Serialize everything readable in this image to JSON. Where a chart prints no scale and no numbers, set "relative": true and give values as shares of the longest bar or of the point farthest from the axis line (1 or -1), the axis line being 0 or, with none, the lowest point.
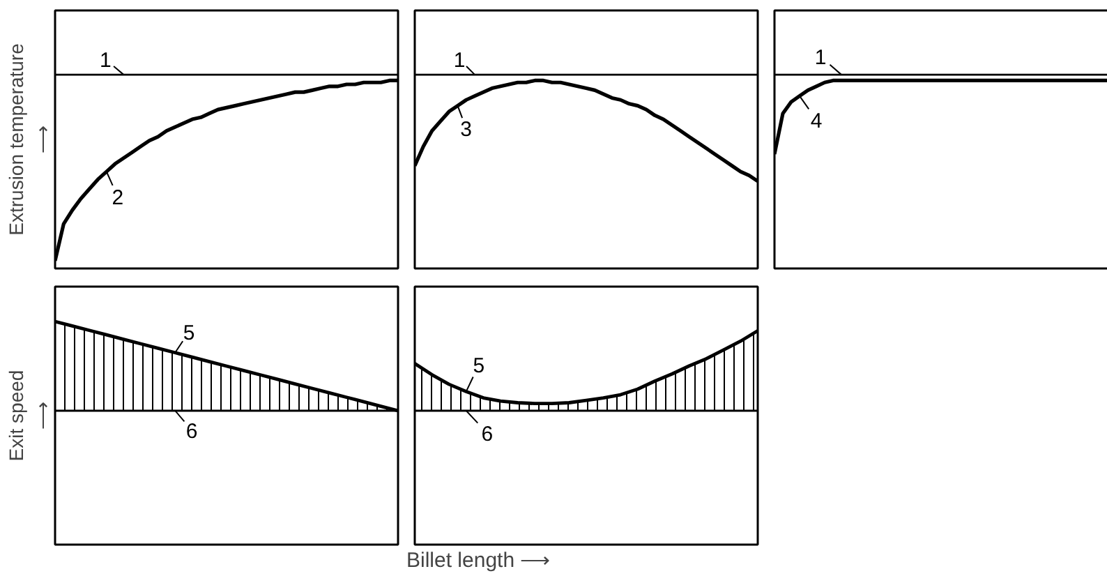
{
  "chart_data": [
    {
      "type": "line",
      "relative": true,
      "ylabel": "Extrusion temperature\n⟶",
      "categories": [
        null,
        null,
        null,
        null,
        null,
        null,
        null,
        null,
        null,
        null,
        null,
        null,
        null,
        null,
        null,
        null,
        null,
        null,
        null,
        null,
        null,
        null,
        null,
        null,
        null,
        null,
        null,
        null,
        null,
        null,
        null,
        null,
        null,
        null,
        null,
        null,
        null,
        null,
        null,
        null,
        null
      ],
      "series": [
        {
          "name": "1",
          "color": "#000000",
          "values": [
            1,
            1,
            1,
            1,
            1,
            1,
            1,
            1,
            1,
            1,
            1,
            1,
            1,
            1,
            1,
            1,
            1,
            1,
            1,
            1,
            1,
            1,
            1,
            1,
            1,
            1,
            1,
            1,
            1,
            1,
            1,
            1,
            1,
            1,
            1,
            1,
            1,
            1,
            1,
            1,
            1
          ]
        },
        {
          "name": "2",
          "color": "#000000",
          "values": [
            0.04,
            0.23,
            0.3,
            0.36,
            0.41,
            0.46,
            0.5,
            0.54,
            0.57,
            0.6,
            0.63,
            0.66,
            0.68,
            0.71,
            0.73,
            0.75,
            0.77,
            0.78,
            0.8,
            0.82,
            0.83,
            0.84,
            0.85,
            0.86,
            0.87,
            0.88,
            0.89,
            0.9,
            0.91,
            0.91,
            0.92,
            0.93,
            0.94,
            0.94,
            0.95,
            0.95,
            0.96,
            0.96,
            0.96,
            0.97,
            0.97
          ]
        }
      ]
    },
    {
      "type": "line",
      "relative": true,
      "categories": [
        null,
        null,
        null,
        null,
        null,
        null,
        null,
        null,
        null,
        null,
        null,
        null,
        null,
        null,
        null,
        null,
        null,
        null,
        null,
        null,
        null,
        null,
        null,
        null,
        null,
        null,
        null,
        null,
        null,
        null,
        null,
        null,
        null,
        null,
        null,
        null,
        null,
        null,
        null,
        null,
        null
      ],
      "series": [
        {
          "name": "1",
          "color": "#000000",
          "values": [
            1,
            1,
            1,
            1,
            1,
            1,
            1,
            1,
            1,
            1,
            1,
            1,
            1,
            1,
            1,
            1,
            1,
            1,
            1,
            1,
            1,
            1,
            1,
            1,
            1,
            1,
            1,
            1,
            1,
            1,
            1,
            1,
            1,
            1,
            1,
            1,
            1,
            1,
            1,
            1,
            1
          ]
        },
        {
          "name": "3",
          "color": "#000000",
          "values": [
            0.53,
            0.63,
            0.71,
            0.76,
            0.81,
            0.84,
            0.87,
            0.89,
            0.91,
            0.93,
            0.94,
            0.95,
            0.96,
            0.96,
            0.97,
            0.97,
            0.96,
            0.96,
            0.95,
            0.94,
            0.93,
            0.92,
            0.9,
            0.88,
            0.87,
            0.85,
            0.84,
            0.82,
            0.79,
            0.77,
            0.74,
            0.71,
            0.68,
            0.65,
            0.62,
            0.59,
            0.56,
            0.53,
            0.5,
            0.48,
            0.45
          ]
        }
      ]
    },
    {
      "type": "line",
      "relative": true,
      "categories": [
        null,
        null,
        null,
        null,
        null,
        null,
        null,
        null,
        null,
        null,
        null,
        null,
        null,
        null,
        null,
        null,
        null,
        null,
        null,
        null,
        null,
        null,
        null,
        null,
        null,
        null,
        null,
        null,
        null,
        null,
        null,
        null,
        null,
        null,
        null,
        null,
        null,
        null,
        null,
        null,
        null
      ],
      "series": [
        {
          "name": "1",
          "color": "#000000",
          "values": [
            1,
            1,
            1,
            1,
            1,
            1,
            1,
            1,
            1,
            1,
            1,
            1,
            1,
            1,
            1,
            1,
            1,
            1,
            1,
            1,
            1,
            1,
            1,
            1,
            1,
            1,
            1,
            1,
            1,
            1,
            1,
            1,
            1,
            1,
            1,
            1,
            1,
            1,
            1,
            1,
            1
          ]
        },
        {
          "name": "4",
          "color": "#000000",
          "values": [
            0.59,
            0.8,
            0.86,
            0.89,
            0.92,
            0.94,
            0.96,
            0.97,
            0.97,
            0.97,
            0.97,
            0.97,
            0.97,
            0.97,
            0.97,
            0.97,
            0.97,
            0.97,
            0.97,
            0.97,
            0.97,
            0.97,
            0.97,
            0.97,
            0.97,
            0.97,
            0.97,
            0.97,
            0.97,
            0.97,
            0.97,
            0.97,
            0.97,
            0.97,
            0.97,
            0.97,
            0.97,
            0.97,
            0.97,
            0.97,
            0.97
          ]
        }
      ]
    },
    {
      "type": "area",
      "relative": true,
      "ylabel": "Exit speed\n⟶",
      "categories": [
        null,
        null,
        null,
        null,
        null,
        null,
        null,
        null,
        null,
        null,
        null,
        null,
        null,
        null,
        null,
        null,
        null,
        null,
        null,
        null,
        null
      ],
      "series": [
        {
          "name": "5",
          "color": "#000000",
          "values": [
            1.0,
            0.95,
            0.9,
            0.85,
            0.8,
            0.75,
            0.7,
            0.65,
            0.6,
            0.55,
            0.5,
            0.45,
            0.4,
            0.35,
            0.3,
            0.25,
            0.2,
            0.15,
            0.1,
            0.05,
            0.0
          ]
        },
        {
          "name": "6",
          "type": "line",
          "color": "#000000",
          "values": [
            0,
            0,
            0,
            0,
            0,
            0,
            0,
            0,
            0,
            0,
            0,
            0,
            0,
            0,
            0,
            0,
            0,
            0,
            0,
            0,
            0
          ]
        }
      ]
    },
    {
      "type": "area",
      "relative": true,
      "xlabel": "Billet length  ⟶",
      "categories": [
        null,
        null,
        null,
        null,
        null,
        null,
        null,
        null,
        null,
        null,
        null,
        null,
        null,
        null,
        null,
        null,
        null,
        null,
        null,
        null,
        null
      ],
      "series": [
        {
          "name": "5",
          "color": "#000000",
          "values": [
            0.59,
            0.45,
            0.33,
            0.24,
            0.16,
            0.12,
            0.1,
            0.09,
            0.09,
            0.1,
            0.13,
            0.16,
            0.2,
            0.27,
            0.37,
            0.46,
            0.56,
            0.65,
            0.76,
            0.87,
            1.0
          ]
        },
        {
          "name": "6",
          "type": "line",
          "color": "#000000",
          "values": [
            0,
            0,
            0,
            0,
            0,
            0,
            0,
            0,
            0,
            0,
            0,
            0,
            0,
            0,
            0,
            0,
            0,
            0,
            0,
            0,
            0
          ]
        }
      ]
    }
  ]
}
